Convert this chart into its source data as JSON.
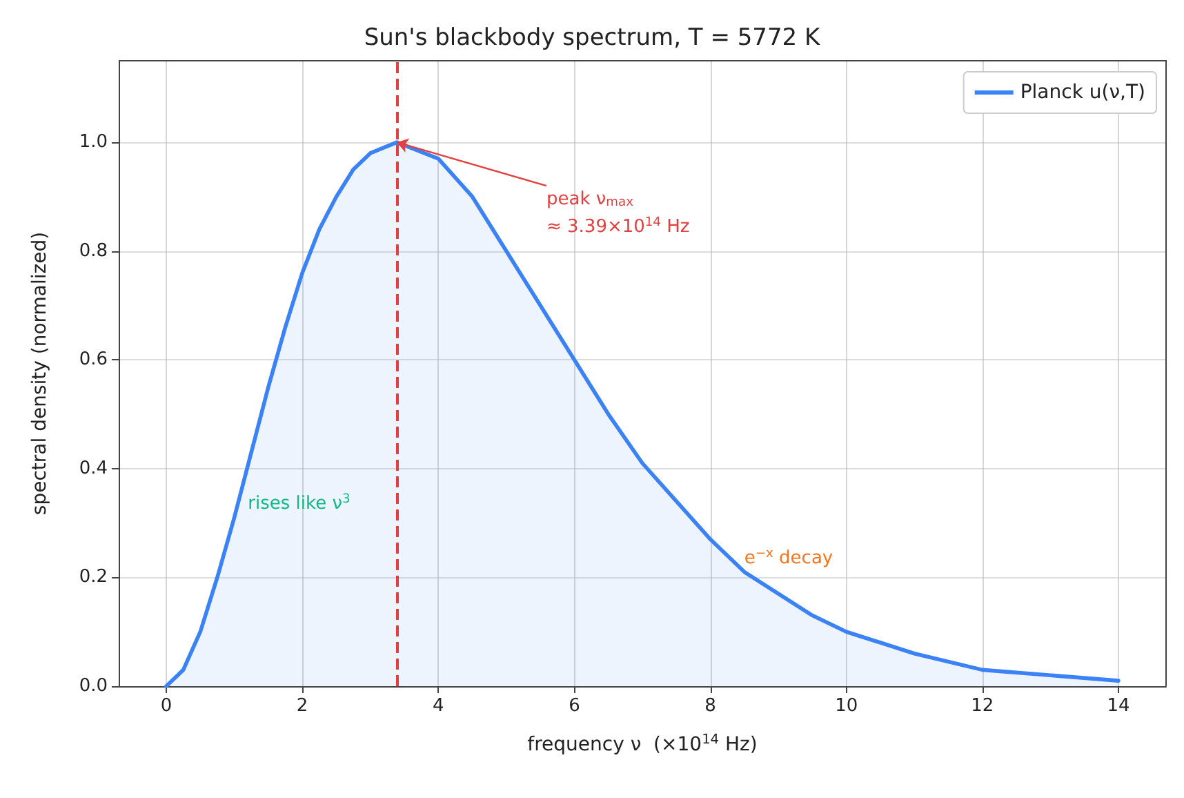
{
  "chart_data": {
    "type": "area",
    "title": "Sun's blackbody spectrum, T = 5772 K",
    "xlabel": "frequency ν  (×10$^{14}$ Hz)",
    "ylabel": "spectral density (normalized)",
    "x": [
      0,
      0.25,
      0.5,
      0.75,
      1,
      1.25,
      1.5,
      1.75,
      2,
      2.25,
      2.5,
      2.75,
      3,
      3.39,
      4,
      4.5,
      5,
      5.5,
      6,
      6.5,
      7,
      7.5,
      8,
      8.5,
      9,
      9.5,
      10,
      11,
      12,
      13,
      14
    ],
    "series": [
      {
        "name": "Planck u(ν,T)",
        "color": "#3b82f6",
        "values": [
          0,
          0.03,
          0.1,
          0.2,
          0.31,
          0.43,
          0.55,
          0.66,
          0.76,
          0.84,
          0.9,
          0.95,
          0.98,
          1.0,
          0.97,
          0.9,
          0.8,
          0.7,
          0.6,
          0.5,
          0.41,
          0.34,
          0.27,
          0.21,
          0.17,
          0.13,
          0.1,
          0.06,
          0.03,
          0.02,
          0.01
        ]
      }
    ],
    "ref_lines": [
      {
        "axis": "x",
        "value": 3.39,
        "color": "#e53e3e",
        "line_style": "dashed"
      }
    ],
    "annotations": [
      {
        "text": "peak ν$_{max}$\n≈ 3.39×10$^{14}$ Hz",
        "x": 3.39,
        "y": 1.0
      },
      "rises like ν$^{3}$",
      "e$^{−x}$ decay"
    ],
    "xlim": [
      -0.7,
      14.7
    ],
    "ylim": [
      0,
      1.15
    ],
    "xticks": [
      0,
      2,
      4,
      6,
      8,
      10,
      12,
      14
    ],
    "yticks": [
      {
        "value": 0,
        "label": "0.0"
      },
      0.2,
      0.4,
      0.6,
      0.8,
      {
        "value": 1,
        "label": "1.0"
      }
    ],
    "grid": true,
    "legend": "top right",
    "line_style": "solid",
    "marker": "none"
  }
}
